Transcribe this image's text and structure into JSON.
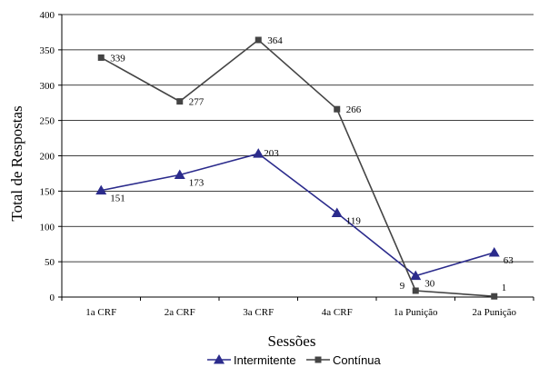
{
  "chart_data": {
    "type": "line",
    "categories": [
      "1a CRF",
      "2a CRF",
      "3a CRF",
      "4a CRF",
      "1a Punição",
      "2a Punição"
    ],
    "series": [
      {
        "name": "Intermitente",
        "values": [
          151,
          173,
          203,
          119,
          30,
          63
        ],
        "color": "#2b2b8c",
        "marker": "triangle"
      },
      {
        "name": "Contínua",
        "values": [
          339,
          277,
          364,
          266,
          9,
          1
        ],
        "color": "#444444",
        "marker": "square"
      }
    ],
    "xlabel": "Sessões",
    "ylabel": "Total de Respostas",
    "ylim": [
      0,
      400
    ],
    "yticks": [
      0,
      50,
      100,
      150,
      200,
      250,
      300,
      350,
      400
    ],
    "grid": "horizontal",
    "legend": "bottom"
  }
}
